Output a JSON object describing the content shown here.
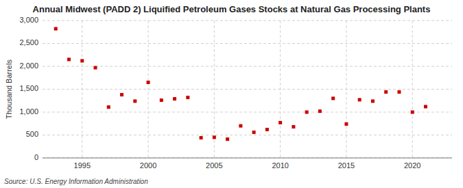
{
  "chart_data": {
    "type": "scatter",
    "title": "Annual Midwest (PADD 2) Liquified Petroleum Gases Stocks at Natural Gas Processing Plants",
    "y_label": "Thousand Barrels",
    "source": "Source: U.S. Energy Information Administration",
    "x": [
      1993,
      1994,
      1995,
      1996,
      1997,
      1998,
      1999,
      2000,
      2001,
      2002,
      2003,
      2004,
      2005,
      2006,
      2007,
      2008,
      2009,
      2010,
      2011,
      2012,
      2013,
      2014,
      2015,
      2016,
      2017,
      2018,
      2019,
      2020,
      2021
    ],
    "values": [
      2820,
      2150,
      2120,
      1970,
      1110,
      1380,
      1240,
      1650,
      1260,
      1290,
      1320,
      440,
      450,
      410,
      700,
      560,
      620,
      770,
      680,
      1000,
      1020,
      1300,
      740,
      1270,
      1240,
      1440,
      1440,
      1000,
      1120
    ],
    "color": "#cc0000",
    "marker": "square",
    "xlim": [
      1992,
      2023
    ],
    "ylim": [
      0,
      3000
    ],
    "xticks": [
      1995,
      2000,
      2005,
      2010,
      2015,
      2020
    ],
    "yticks": [
      0,
      500,
      {
        "value": 1000,
        "label": "1,000"
      },
      {
        "value": 1500,
        "label": "1,500"
      },
      {
        "value": 2000,
        "label": "2,000"
      },
      {
        "value": 2500,
        "label": "2,500"
      },
      {
        "value": 3000,
        "label": "3,000"
      }
    ],
    "grid": true
  }
}
